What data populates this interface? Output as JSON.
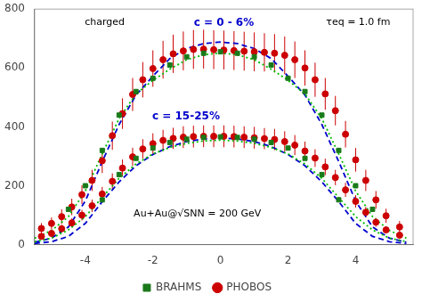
{
  "chart_data": {
    "type": "scatter",
    "xlim": [
      -5.5,
      5.7
    ],
    "xticks": [
      -4,
      -2,
      0,
      2,
      4
    ],
    "ylim": [
      0,
      800
    ],
    "yticks": [
      0,
      200,
      400,
      600,
      800
    ],
    "grid": false,
    "legend": "bottom",
    "annotations": [
      {
        "text": "charged"
      },
      {
        "text": "c = 0 - 6%",
        "color": "#0000cc"
      },
      {
        "text": "τeq = 1.0 fm"
      },
      {
        "text": "c = 15-25%",
        "color": "#0000cc"
      },
      {
        "text": "Au+Au@√SNN = 200 GeV"
      }
    ],
    "series": [
      {
        "name": "BRAHMS",
        "type": "scatter",
        "marker": "square",
        "color": "#1a7a1a",
        "x": [
          -4.5,
          -4.0,
          -3.5,
          -3.0,
          -2.5,
          -2.0,
          -1.5,
          -1.0,
          -0.5,
          0.0,
          0.5,
          1.0,
          1.5,
          2.0,
          2.5,
          3.0,
          3.5,
          4.0,
          4.5
        ],
        "values": [
          120,
          200,
          320,
          440,
          520,
          565,
          610,
          638,
          650,
          655,
          650,
          638,
          610,
          565,
          520,
          440,
          320,
          200,
          120
        ]
      },
      {
        "name": "BRAHMS",
        "type": "scatter",
        "marker": "square",
        "color": "#1a7a1a",
        "x": [
          -3.5,
          -3.0,
          -2.5,
          -2.0,
          -1.5,
          -1.0,
          -0.5,
          0.0,
          0.5,
          1.0,
          1.5,
          2.0,
          2.5,
          3.0,
          3.5
        ],
        "values": [
          152,
          238,
          293,
          328,
          347,
          358,
          364,
          366,
          364,
          358,
          347,
          328,
          293,
          238,
          152
        ]
      },
      {
        "name": "PHOBOS",
        "type": "scatter",
        "marker": "circle",
        "color": "#cc0000",
        "x": [
          -5.3,
          -5.0,
          -4.7,
          -4.4,
          -4.1,
          -3.8,
          -3.5,
          -3.2,
          -2.9,
          -2.6,
          -2.3,
          -2.0,
          -1.7,
          -1.4,
          -1.1,
          -0.8,
          -0.5,
          -0.2,
          0.1,
          0.4,
          0.7,
          1.0,
          1.3,
          1.6,
          1.9,
          2.2,
          2.5,
          2.8,
          3.1,
          3.4,
          3.7,
          4.0,
          4.3,
          4.6,
          4.9,
          5.3
        ],
        "values": [
          55,
          72,
          95,
          128,
          170,
          218,
          285,
          370,
          445,
          510,
          560,
          598,
          628,
          648,
          658,
          663,
          664,
          662,
          661,
          659,
          657,
          655,
          653,
          650,
          643,
          628,
          600,
          560,
          512,
          455,
          375,
          288,
          218,
          152,
          98,
          60
        ],
        "errors": [
          18,
          20,
          25,
          28,
          32,
          36,
          42,
          48,
          52,
          56,
          60,
          62,
          64,
          65,
          66,
          66,
          66,
          66,
          66,
          66,
          66,
          66,
          65,
          65,
          64,
          62,
          60,
          58,
          54,
          50,
          45,
          40,
          36,
          30,
          24,
          20
        ]
      },
      {
        "name": "PHOBOS",
        "type": "scatter",
        "marker": "circle",
        "color": "#cc0000",
        "x": [
          -5.3,
          -5.0,
          -4.7,
          -4.4,
          -4.1,
          -3.8,
          -3.5,
          -3.2,
          -2.9,
          -2.6,
          -2.3,
          -2.0,
          -1.7,
          -1.4,
          -1.1,
          -0.8,
          -0.5,
          -0.2,
          0.1,
          0.4,
          0.7,
          1.0,
          1.3,
          1.6,
          1.9,
          2.2,
          2.5,
          2.8,
          3.1,
          3.4,
          3.7,
          4.0,
          4.3,
          4.6,
          4.9,
          5.3
        ],
        "values": [
          28,
          38,
          54,
          74,
          100,
          132,
          172,
          215,
          260,
          298,
          325,
          343,
          354,
          361,
          365,
          367,
          368,
          368,
          368,
          367,
          365,
          363,
          360,
          357,
          350,
          338,
          318,
          294,
          264,
          228,
          186,
          147,
          110,
          76,
          50,
          32
        ],
        "errors": [
          10,
          11,
          13,
          15,
          18,
          21,
          24,
          27,
          29,
          31,
          33,
          35,
          36,
          36,
          37,
          37,
          37,
          37,
          37,
          37,
          37,
          37,
          36,
          36,
          35,
          34,
          32,
          30,
          28,
          26,
          24,
          21,
          18,
          15,
          12,
          10
        ]
      },
      {
        "type": "line",
        "line_style": "dotted",
        "color": "#00bb00",
        "x": [
          -5.5,
          -5.0,
          -4.5,
          -4.0,
          -3.5,
          -3.0,
          -2.5,
          -2.0,
          -1.5,
          -1.0,
          -0.5,
          0.0,
          0.5,
          1.0,
          1.5,
          2.0,
          2.5,
          3.0,
          3.5,
          4.0,
          4.5,
          5.0,
          5.5
        ],
        "values": [
          22,
          48,
          95,
          182,
          308,
          428,
          512,
          558,
          596,
          628,
          645,
          651,
          645,
          628,
          596,
          558,
          512,
          428,
          308,
          182,
          95,
          48,
          22
        ]
      },
      {
        "type": "line",
        "line_style": "dotted",
        "color": "#00bb00",
        "x": [
          -5.5,
          -5.0,
          -4.5,
          -4.0,
          -3.5,
          -3.0,
          -2.5,
          -2.0,
          -1.5,
          -1.0,
          -0.5,
          0.0,
          0.5,
          1.0,
          1.5,
          2.0,
          2.5,
          3.0,
          3.5,
          4.0,
          4.5,
          5.0,
          5.5
        ],
        "values": [
          10,
          22,
          50,
          95,
          160,
          225,
          274,
          308,
          330,
          344,
          352,
          355,
          352,
          344,
          330,
          308,
          274,
          225,
          160,
          95,
          50,
          22,
          10
        ]
      },
      {
        "type": "line",
        "line_style": "dashed",
        "color": "#0000cc",
        "x": [
          -5.5,
          -5.0,
          -4.5,
          -4.0,
          -3.5,
          -3.0,
          -2.5,
          -2.0,
          -1.5,
          -1.0,
          -0.5,
          0.0,
          0.5,
          1.0,
          1.5,
          2.0,
          2.5,
          3.0,
          3.5,
          4.0,
          4.5,
          5.0,
          5.5
        ],
        "values": [
          8,
          22,
          60,
          148,
          282,
          408,
          508,
          572,
          632,
          666,
          683,
          688,
          683,
          666,
          632,
          572,
          508,
          408,
          282,
          148,
          60,
          22,
          8
        ]
      },
      {
        "type": "line",
        "line_style": "dashed",
        "color": "#0000cc",
        "x": [
          -5.5,
          -5.0,
          -4.5,
          -4.0,
          -3.5,
          -3.0,
          -2.5,
          -2.0,
          -1.5,
          -1.0,
          -0.5,
          0.0,
          0.5,
          1.0,
          1.5,
          2.0,
          2.5,
          3.0,
          3.5,
          4.0,
          4.5,
          5.0,
          5.5
        ],
        "values": [
          4,
          10,
          28,
          72,
          146,
          213,
          268,
          306,
          333,
          350,
          359,
          362,
          359,
          350,
          333,
          306,
          268,
          213,
          146,
          72,
          28,
          10,
          4
        ]
      }
    ]
  }
}
